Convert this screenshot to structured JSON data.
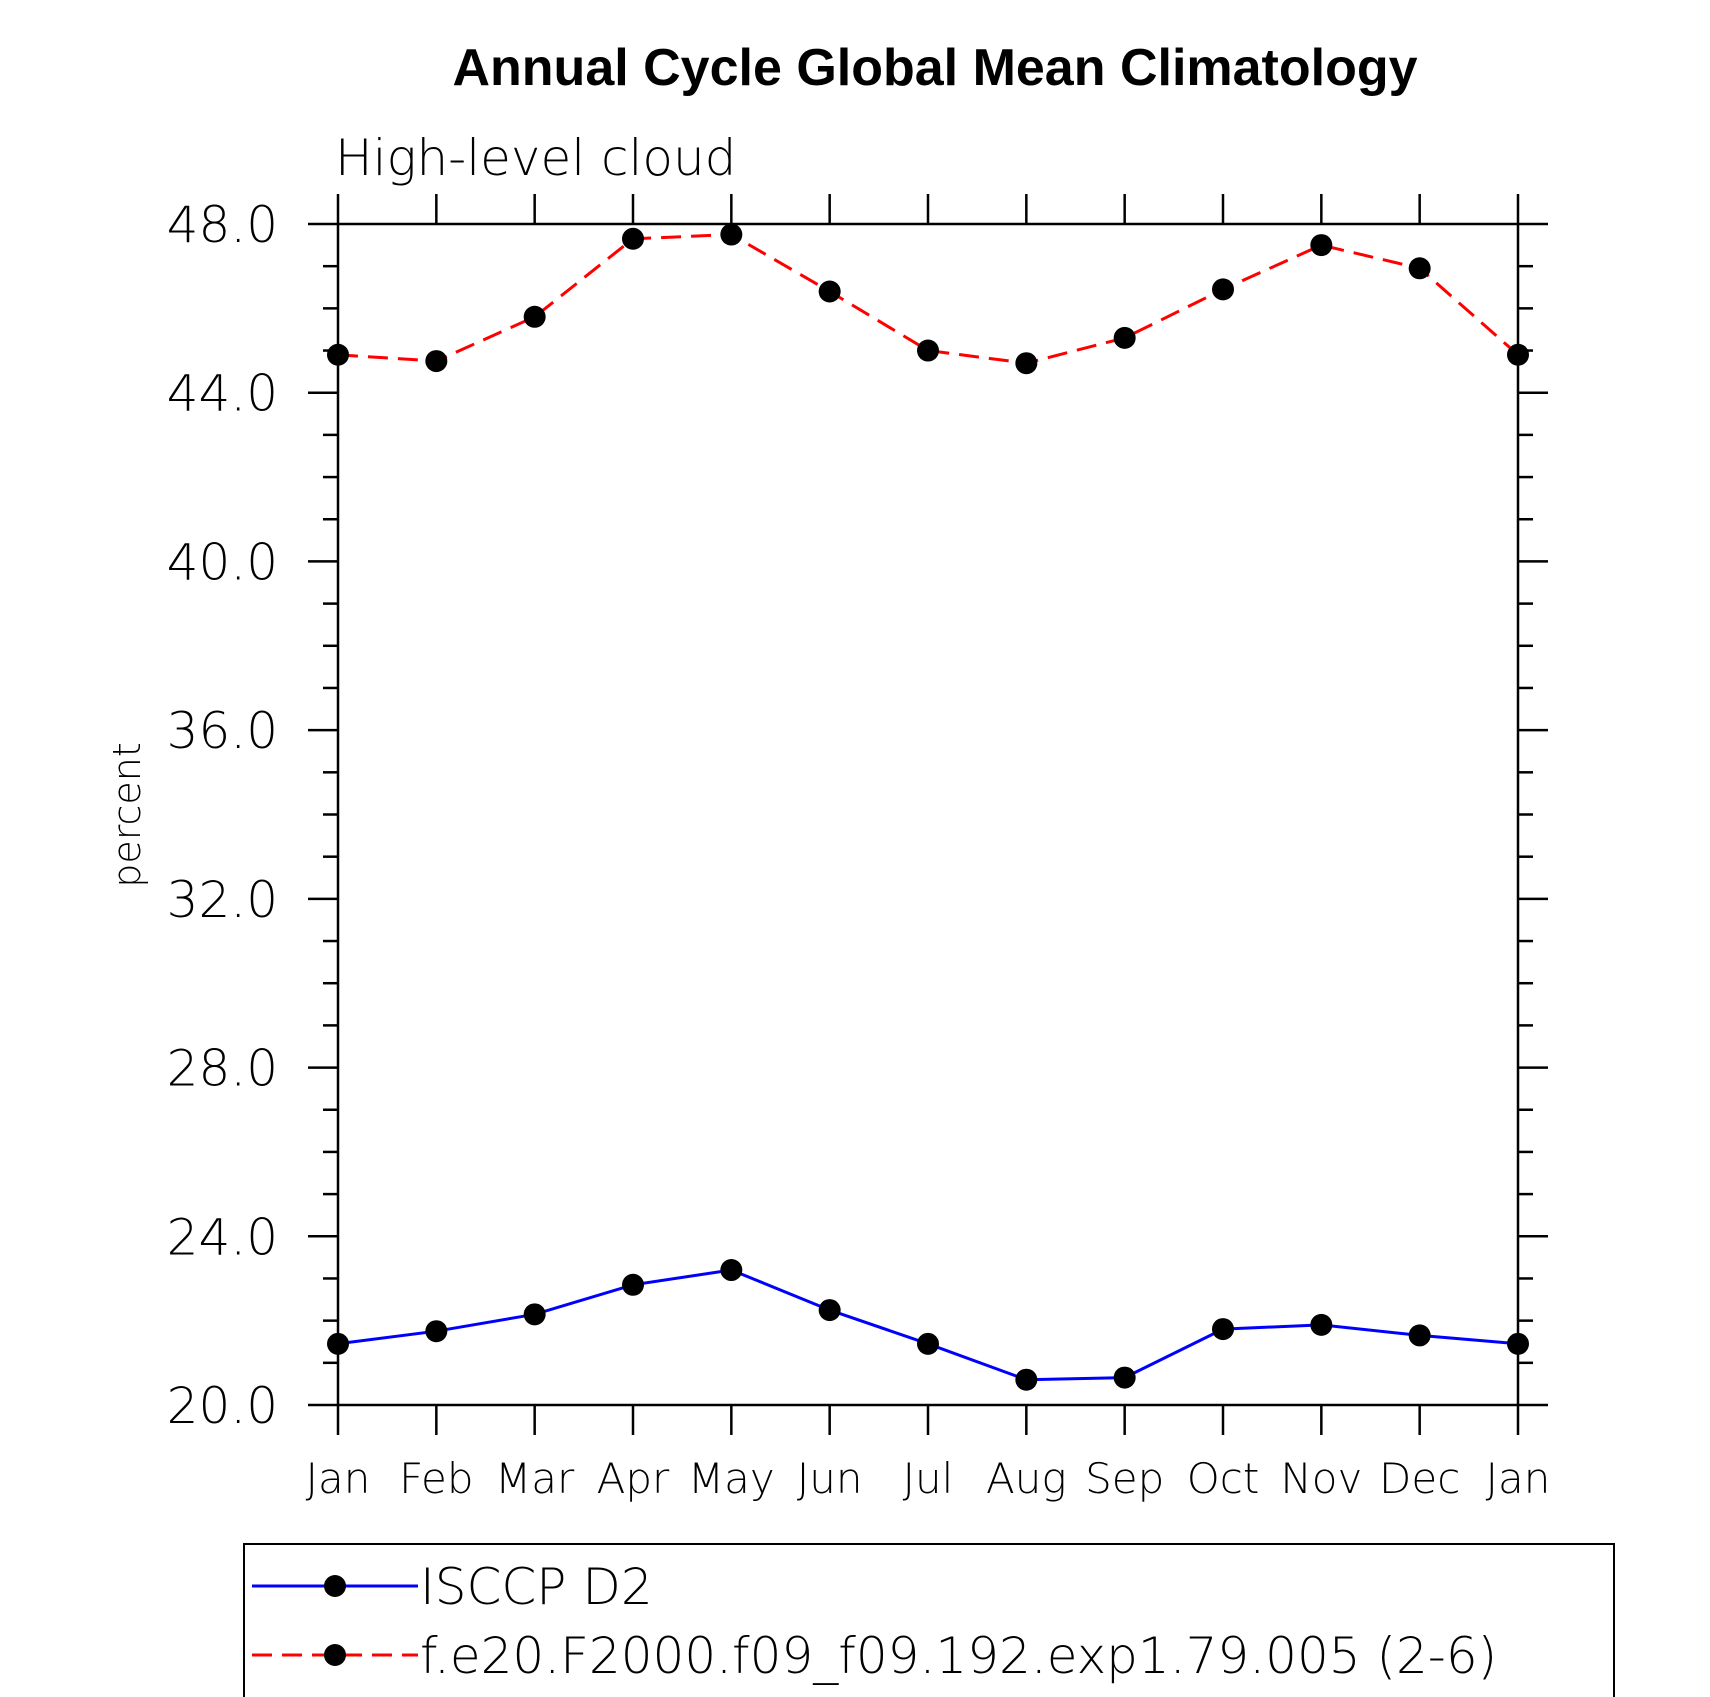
{
  "chart_data": {
    "type": "line",
    "title": "Annual Cycle Global Mean Climatology",
    "subtitle": "High-level cloud",
    "ylabel": "percent",
    "xlabel": "",
    "categories": [
      "Jan",
      "Feb",
      "Mar",
      "Apr",
      "May",
      "Jun",
      "Jul",
      "Aug",
      "Sep",
      "Oct",
      "Nov",
      "Dec",
      "Jan"
    ],
    "ylim": [
      20.0,
      48.0
    ],
    "y_ticks": [
      "20.0",
      "24.0",
      "28.0",
      "32.0",
      "36.0",
      "40.0",
      "44.0",
      "48.0"
    ],
    "series": [
      {
        "name": "ISCCP D2",
        "color": "#0000ff",
        "line_style": "solid",
        "marker": "filled-circle",
        "values": [
          21.45,
          21.75,
          22.15,
          22.85,
          23.2,
          22.25,
          21.45,
          20.6,
          20.65,
          21.8,
          21.9,
          21.65,
          21.45
        ]
      },
      {
        "name": "f.e20.F2000.f09_f09.192.exp1.79.005 (2-6)",
        "color": "#ff0000",
        "line_style": "dashed",
        "marker": "filled-circle",
        "values": [
          44.9,
          44.75,
          45.8,
          47.65,
          47.75,
          46.4,
          45.0,
          44.7,
          45.3,
          46.45,
          47.5,
          46.95,
          44.9
        ]
      }
    ],
    "grid": false,
    "legend_position": "bottom"
  }
}
